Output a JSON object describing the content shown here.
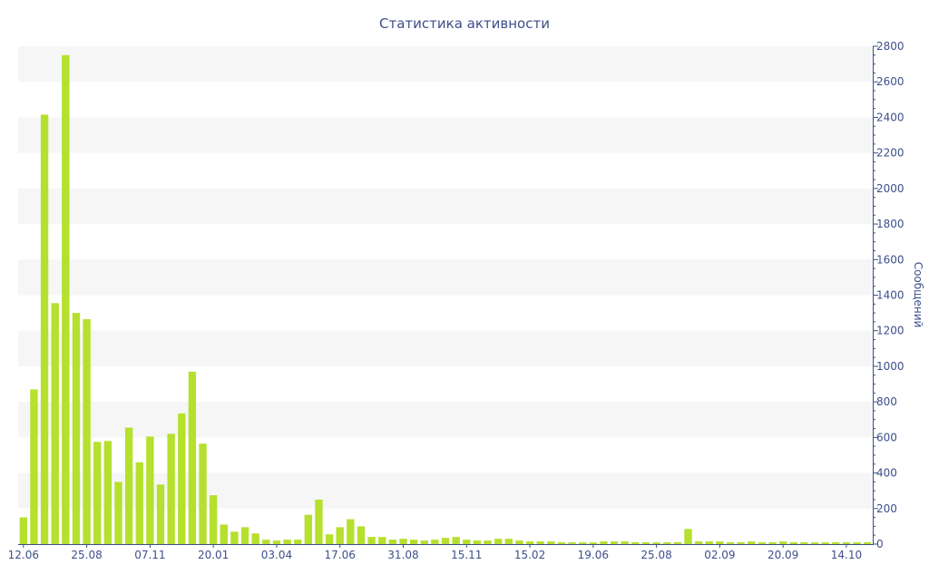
{
  "chart_data": {
    "type": "bar",
    "title": "Статистика активности",
    "xlabel": "",
    "ylabel": "Сообщений",
    "y_axis_side": "right",
    "ylim": [
      0,
      2800
    ],
    "y_ticks": [
      0,
      200,
      400,
      600,
      800,
      1000,
      1200,
      1400,
      1600,
      1800,
      2000,
      2200,
      2400,
      2600,
      2800
    ],
    "x_tick_labels": [
      {
        "label": "12.06",
        "index": 0
      },
      {
        "label": "25.08",
        "index": 6
      },
      {
        "label": "07.11",
        "index": 12
      },
      {
        "label": "20.01",
        "index": 18
      },
      {
        "label": "03.04",
        "index": 24
      },
      {
        "label": "17.06",
        "index": 30
      },
      {
        "label": "31.08",
        "index": 36
      },
      {
        "label": "15.11",
        "index": 42
      },
      {
        "label": "15.02",
        "index": 48
      },
      {
        "label": "19.06",
        "index": 54
      },
      {
        "label": "25.08",
        "index": 60
      },
      {
        "label": "02.09",
        "index": 66
      },
      {
        "label": "20.09",
        "index": 72
      },
      {
        "label": "14.10",
        "index": 78
      }
    ],
    "grid_bands": true,
    "bar_color": "#b5e02e",
    "series": [
      {
        "values": [
          150,
          870,
          2415,
          1355,
          2750,
          1300,
          1265,
          575,
          580,
          350,
          655,
          460,
          605,
          335,
          620,
          735,
          970,
          565,
          275,
          110,
          70,
          95,
          60,
          25,
          20,
          25,
          25,
          165,
          250,
          55,
          95,
          140,
          100,
          40,
          40,
          25,
          30,
          25,
          20,
          25,
          35,
          40,
          25,
          20,
          20,
          30,
          30,
          20,
          15,
          15,
          15,
          10,
          10,
          10,
          10,
          15,
          15,
          15,
          10,
          10,
          10,
          10,
          10,
          85,
          15,
          15,
          15,
          10,
          10,
          15,
          10,
          10,
          15,
          10,
          10,
          10,
          10,
          10,
          10,
          10,
          10
        ]
      }
    ]
  }
}
